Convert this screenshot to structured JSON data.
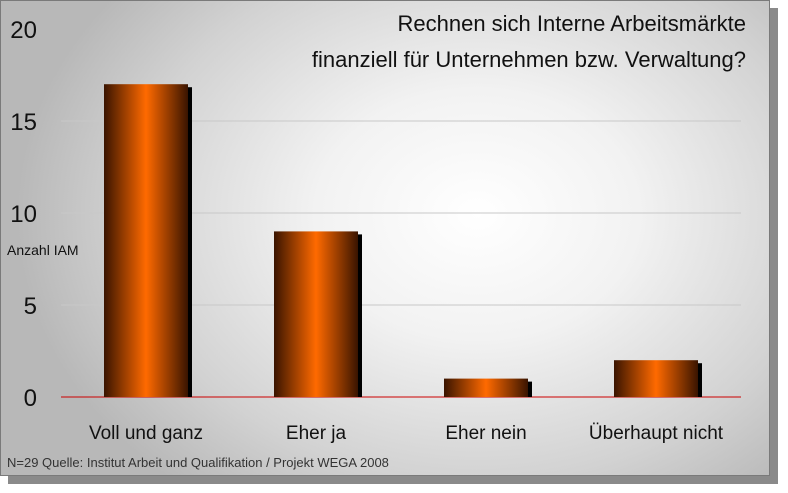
{
  "chart_data": {
    "type": "bar",
    "title_lines": [
      "Rechnen sich Interne Arbeitsmärkte",
      "finanziell für Unternehmen bzw. Verwaltung?"
    ],
    "ylabel": "Anzahl IAM",
    "categories": [
      "Voll und ganz",
      "Eher ja",
      "Eher nein",
      "Überhaupt nicht"
    ],
    "values": [
      17,
      9,
      1,
      2
    ],
    "ylim": [
      0,
      20
    ],
    "yticks": [
      0,
      5,
      10,
      15,
      20
    ],
    "grid": true,
    "footnote": "N=29  Quelle: Institut Arbeit und Qualifikation / Projekt WEGA 2008",
    "colors": {
      "bar_mid": "#ff6a00",
      "bar_edge": "#3a1400",
      "bar_shadow": "#000000",
      "baseline": "#cc0000",
      "grid": "#c8c8c8"
    }
  }
}
